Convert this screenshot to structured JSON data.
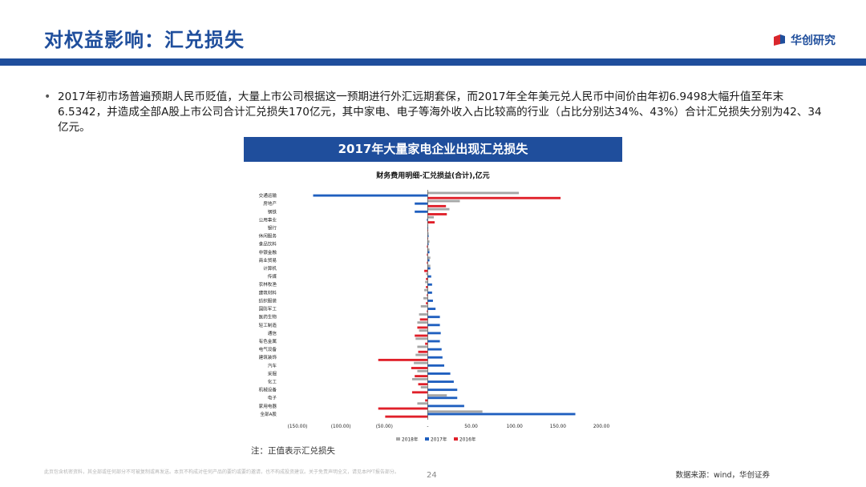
{
  "header": {
    "title": "对权益影响：汇兑损失",
    "logo_text": "华创研究"
  },
  "body": {
    "bullet": "2017年初市场普遍预期人民币贬值，大量上市公司根据这一预期进行外汇远期套保，而2017年全年美元兑人民币中间价由年初6.9498大幅升值至年末6.5342，并造成全部A股上市公司合计汇兑损失170亿元，其中家电、电子等海外收入占比较高的行业（占比分别达34%、43%）合计汇兑损失分别为42、34亿元。"
  },
  "banner": "2017年大量家电企业出现汇兑损失",
  "note": "注：正值表示汇兑损失",
  "footer": {
    "disclaimer": "此页包含机密资料，其全部或任何部分不可被复制或再发送。本页不构成对任何产品的要约或要约邀请，也不构成投资建议。关于免责声明全文，请见本PPT报告部分。",
    "page": "24",
    "source": "数据来源：wind，华创证券"
  },
  "colors": {
    "brand": "#1f4e9c",
    "s2018": "#a6a6a6",
    "s2017": "#1f5fbf",
    "s2016": "#e0202a"
  },
  "chart_data": {
    "type": "bar",
    "orientation": "horizontal",
    "title": "财务费用明细-汇兑损益(合计),亿元",
    "categories": [
      "交通运输",
      "房地产",
      "钢铁",
      "公用事业",
      "银行",
      "休闲服务",
      "食品饮料",
      "非银金融",
      "商业贸易",
      "计算机",
      "传媒",
      "农林牧渔",
      "建筑材料",
      "纺织服装",
      "国防军工",
      "医药生物",
      "轻工制造",
      "通信",
      "有色金属",
      "电气设备",
      "建筑装饰",
      "汽车",
      "采掘",
      "化工",
      "机械设备",
      "电子",
      "家用电器",
      "全部A股"
    ],
    "series": [
      {
        "name": "2018年",
        "values": [
          105,
          37,
          25,
          7,
          0,
          1,
          2,
          2,
          3,
          3,
          -2,
          -3,
          -4,
          -5,
          -8,
          -10,
          -12,
          -10,
          -14,
          -12,
          -14,
          -16,
          -12,
          -18,
          -8,
          22,
          -12,
          63
        ]
      },
      {
        "name": "2017年",
        "values": [
          -132,
          -15,
          -15,
          -1,
          0,
          1,
          1,
          2,
          2,
          3,
          4,
          5,
          5,
          6,
          9,
          14,
          14,
          15,
          14,
          16,
          17,
          19,
          26,
          30,
          34,
          34,
          42,
          170
        ]
      },
      {
        "name": "2016年",
        "values": [
          153,
          21,
          22,
          8,
          0,
          0,
          -1,
          -1,
          -1,
          -4,
          -2,
          -2,
          -1,
          -2,
          -1,
          -9,
          -12,
          -15,
          -3,
          -11,
          -57,
          -19,
          -15,
          -11,
          -18,
          -3,
          -57,
          -49
        ]
      }
    ],
    "xlim": [
      -150,
      200
    ],
    "xticks": [
      -150,
      -100,
      -50,
      0,
      50,
      100,
      150,
      200
    ],
    "xtick_labels": [
      "(150.00)",
      "(100.00)",
      "(50.00)",
      "-",
      "50.00",
      "100.00",
      "150.00",
      "200.00"
    ],
    "legend": [
      "2018年",
      "2017年",
      "2016年"
    ],
    "legend_position": "bottom"
  }
}
